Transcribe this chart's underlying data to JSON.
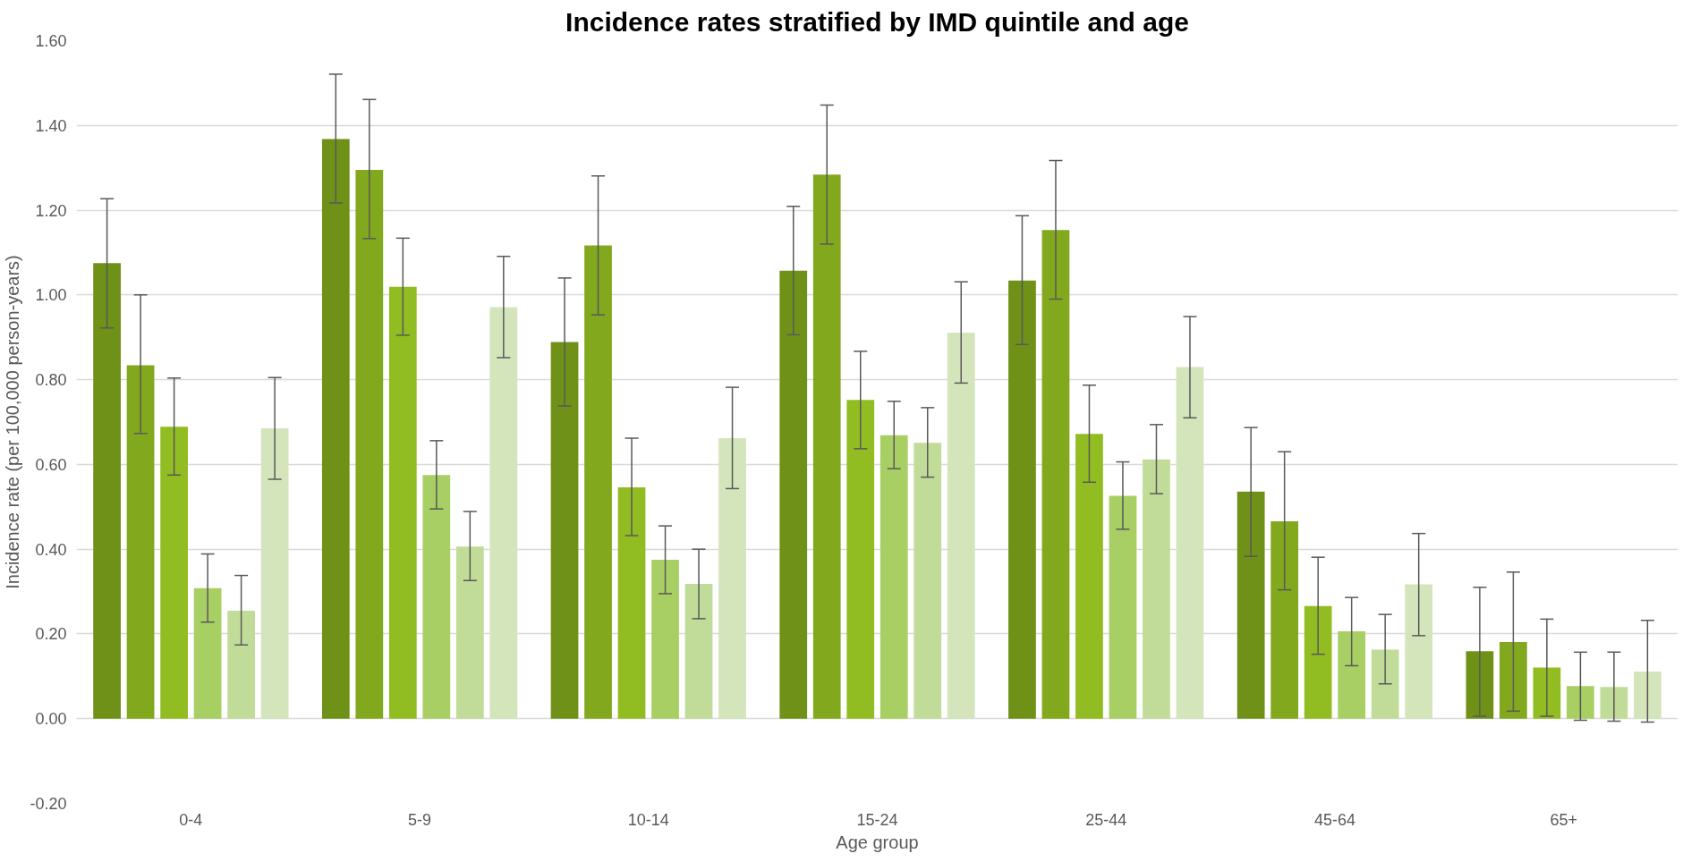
{
  "chart_data": {
    "type": "bar",
    "title": "Incidence rates stratified by IMD quintile and age",
    "xlabel": "Age group",
    "ylabel": "Incidence rate (per 100,000 person-years)",
    "categories": [
      "0-4",
      "5-9",
      "10-14",
      "15-24",
      "25-44",
      "45-64",
      "65+"
    ],
    "ylim": [
      -0.2,
      1.6
    ],
    "yticks": [
      {
        "value": -0.2,
        "label": "-0.20"
      },
      {
        "value": 0,
        "label": "0.00"
      },
      {
        "value": 0.2,
        "label": "0.20"
      },
      {
        "value": 0.4,
        "label": "0.40"
      },
      {
        "value": 0.6,
        "label": "0.60"
      },
      {
        "value": 0.8,
        "label": "0.80"
      },
      {
        "value": 1.0,
        "label": "1.00"
      },
      {
        "value": 1.2,
        "label": "1.20"
      },
      {
        "value": 1.4,
        "label": "1.40"
      },
      {
        "value": 1.6,
        "label": "1.60"
      }
    ],
    "grid": "y",
    "series": [
      {
        "color": "#6f9118",
        "values": [
          1.075,
          1.368,
          0.889,
          1.057,
          1.034,
          0.536,
          0.159
        ],
        "errors": [
          [
            0.922,
            1.227
          ],
          [
            1.217,
            1.521
          ],
          [
            0.738,
            1.04
          ],
          [
            0.906,
            1.209
          ],
          [
            0.883,
            1.187
          ],
          [
            0.383,
            0.687
          ],
          [
            0.006,
            0.31
          ]
        ]
      },
      {
        "color": "#82a81e",
        "values": [
          0.834,
          1.295,
          1.117,
          1.284,
          1.153,
          0.466,
          0.181
        ],
        "errors": [
          [
            0.673,
            1.0
          ],
          [
            1.133,
            1.461
          ],
          [
            0.953,
            1.281
          ],
          [
            1.12,
            1.448
          ],
          [
            0.99,
            1.317
          ],
          [
            0.304,
            0.63
          ],
          [
            0.018,
            0.346
          ]
        ]
      },
      {
        "color": "#92bd22",
        "values": [
          0.689,
          1.019,
          0.546,
          0.752,
          0.672,
          0.266,
          0.121
        ],
        "errors": [
          [
            0.575,
            0.804
          ],
          [
            0.905,
            1.134
          ],
          [
            0.432,
            0.662
          ],
          [
            0.637,
            0.867
          ],
          [
            0.558,
            0.787
          ],
          [
            0.152,
            0.381
          ],
          [
            0.006,
            0.235
          ]
        ]
      },
      {
        "color": "#a8cf63",
        "values": [
          0.308,
          0.575,
          0.375,
          0.669,
          0.526,
          0.206,
          0.077
        ],
        "errors": [
          [
            0.228,
            0.389
          ],
          [
            0.495,
            0.656
          ],
          [
            0.295,
            0.455
          ],
          [
            0.59,
            0.749
          ],
          [
            0.447,
            0.606
          ],
          [
            0.125,
            0.286
          ],
          [
            -0.004,
            0.157
          ]
        ]
      },
      {
        "color": "#c1dc98",
        "values": [
          0.255,
          0.406,
          0.318,
          0.651,
          0.612,
          0.163,
          0.075
        ],
        "errors": [
          [
            0.174,
            0.338
          ],
          [
            0.326,
            0.489
          ],
          [
            0.236,
            0.4
          ],
          [
            0.57,
            0.734
          ],
          [
            0.531,
            0.694
          ],
          [
            0.082,
            0.246
          ],
          [
            -0.006,
            0.157
          ]
        ]
      },
      {
        "color": "#d4e5bb",
        "values": [
          0.685,
          0.971,
          0.662,
          0.911,
          0.83,
          0.317,
          0.111
        ],
        "errors": [
          [
            0.565,
            0.805
          ],
          [
            0.852,
            1.091
          ],
          [
            0.543,
            0.782
          ],
          [
            0.792,
            1.031
          ],
          [
            0.71,
            0.949
          ],
          [
            0.196,
            0.437
          ],
          [
            -0.008,
            0.232
          ]
        ]
      }
    ]
  }
}
